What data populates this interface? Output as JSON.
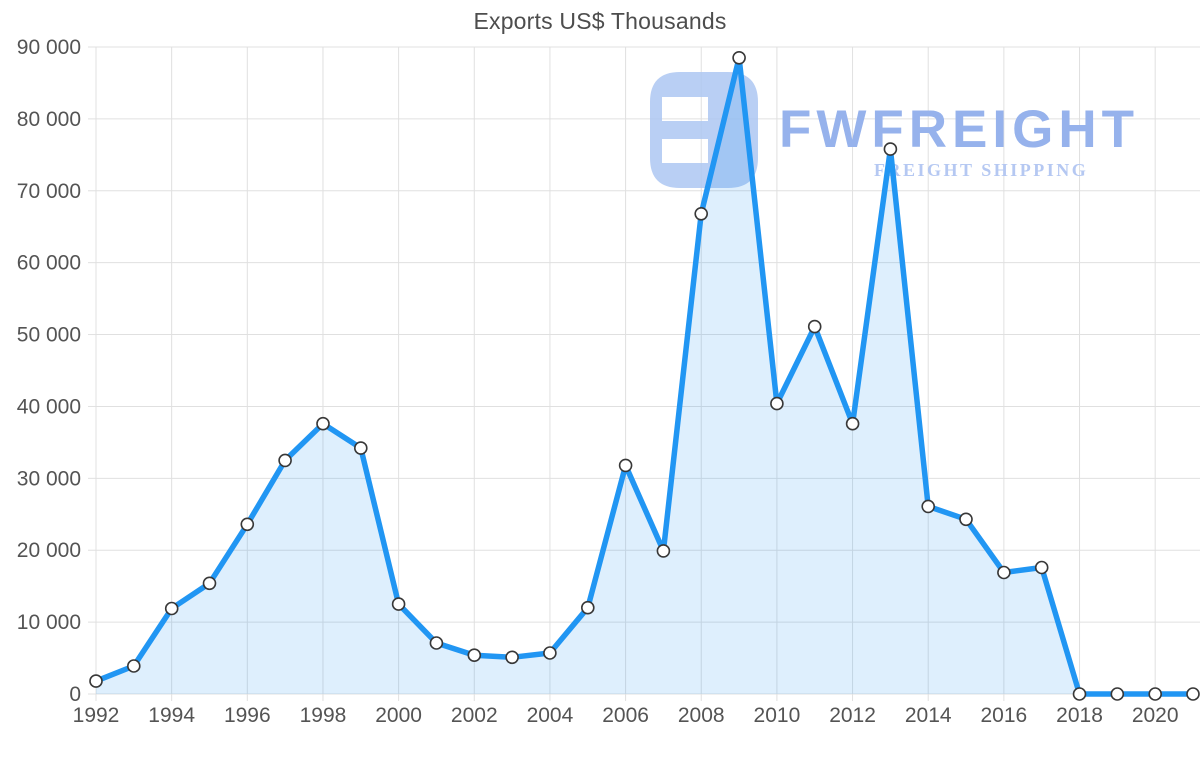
{
  "page": {
    "background": "#ffffff"
  },
  "watermark": {
    "brand": "FWFREIGHT",
    "tagline": "FREIGHT SHIPPING",
    "logo_color": "#aac4f1",
    "brand_color": "#96b2ec",
    "tagline_color": "#b5c8f2"
  },
  "chart_data": {
    "type": "area",
    "title": "Exports US$ Thousands",
    "xlabel": "",
    "ylabel": "",
    "x": [
      1992,
      1993,
      1994,
      1995,
      1996,
      1997,
      1998,
      1999,
      2000,
      2001,
      2002,
      2003,
      2004,
      2005,
      2006,
      2007,
      2008,
      2009,
      2010,
      2011,
      2012,
      2013,
      2014,
      2015,
      2016,
      2017,
      2018,
      2019,
      2020,
      2021
    ],
    "values": [
      1800,
      3900,
      11900,
      15400,
      23600,
      32500,
      37600,
      34200,
      12500,
      7100,
      5400,
      5100,
      5700,
      12000,
      31800,
      19900,
      66800,
      88500,
      40400,
      51100,
      37600,
      75800,
      26100,
      24300,
      16900,
      17600,
      0,
      0,
      0,
      0
    ],
    "ylim": [
      0,
      90000
    ],
    "xticks": [
      1992,
      1994,
      1996,
      1998,
      2000,
      2002,
      2004,
      2006,
      2008,
      2010,
      2012,
      2014,
      2016,
      2018,
      2020
    ],
    "yticks": [
      0,
      10000,
      20000,
      30000,
      40000,
      50000,
      60000,
      70000,
      80000,
      90000
    ],
    "ytick_labels": [
      "0",
      "10 000",
      "20 000",
      "30 000",
      "40 000",
      "50 000",
      "60 000",
      "70 000",
      "80 000",
      "90 000"
    ],
    "grid": true,
    "legend": "none",
    "line_color": "#2196f3",
    "fill_color": "rgba(33,150,243,0.15)",
    "marker_fill": "#ffffff",
    "marker_stroke": "#383838",
    "grid_color": "#e0e0e0",
    "axis_label_color": "#545454",
    "title_color": "#4d4d4d"
  }
}
